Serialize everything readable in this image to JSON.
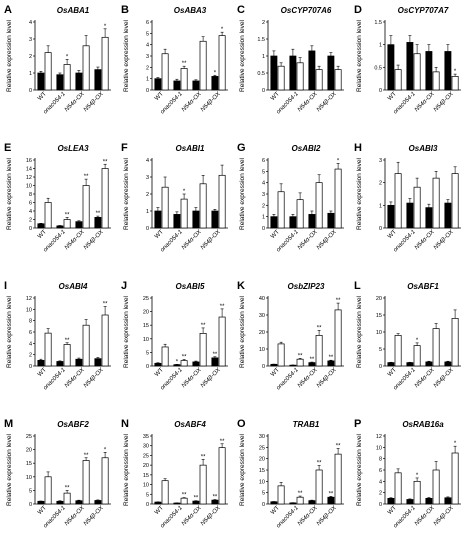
{
  "chart_data": [
    {
      "letter": "A",
      "title": "OsABA1",
      "type": "bar",
      "ylabel": "Relative expression level",
      "ylim": [
        0,
        4
      ],
      "yticks": [
        0,
        1,
        2,
        3,
        4
      ],
      "categories": [
        "WT",
        "onac054-1",
        "N54α-OX",
        "N54β-OX"
      ],
      "series": [
        {
          "fill": "#000000",
          "values": [
            1.0,
            0.9,
            1.0,
            1.2
          ],
          "errors": [
            0.1,
            0.1,
            0.15,
            0.15
          ],
          "stars": [
            "",
            "",
            "",
            ""
          ]
        },
        {
          "fill": "#ffffff",
          "values": [
            2.2,
            1.5,
            2.6,
            3.1
          ],
          "errors": [
            0.4,
            0.3,
            0.6,
            0.5
          ],
          "stars": [
            "",
            "*",
            "",
            "*"
          ]
        }
      ]
    },
    {
      "letter": "B",
      "title": "OsABA3",
      "type": "bar",
      "ylabel": "Relative expression level",
      "ylim": [
        0,
        6
      ],
      "yticks": [
        0,
        1,
        2,
        3,
        4,
        5,
        6
      ],
      "categories": [
        "WT",
        "onac054-1",
        "N54α-OX",
        "N54β-OX"
      ],
      "series": [
        {
          "fill": "#000000",
          "values": [
            1.0,
            0.8,
            0.8,
            1.2
          ],
          "errors": [
            0.1,
            0.15,
            0.1,
            0.1
          ],
          "stars": [
            "",
            "",
            "",
            "*"
          ]
        },
        {
          "fill": "#ffffff",
          "values": [
            3.2,
            1.9,
            4.3,
            4.8
          ],
          "errors": [
            0.4,
            0.2,
            0.4,
            0.3
          ],
          "stars": [
            "",
            "**",
            "",
            "*"
          ]
        }
      ]
    },
    {
      "letter": "C",
      "title": "OsCYP707A6",
      "type": "bar",
      "ylabel": "Relative expression level",
      "ylim": [
        0,
        2
      ],
      "yticks": [
        0,
        0.5,
        1,
        1.5,
        2
      ],
      "categories": [
        "WT",
        "onac054-1",
        "N54α-OX",
        "N54β-OX"
      ],
      "series": [
        {
          "fill": "#000000",
          "values": [
            1.0,
            1.0,
            1.15,
            1.0
          ],
          "errors": [
            0.15,
            0.2,
            0.15,
            0.1
          ],
          "stars": [
            "",
            "",
            "",
            ""
          ]
        },
        {
          "fill": "#ffffff",
          "values": [
            0.7,
            0.8,
            0.6,
            0.6
          ],
          "errors": [
            0.1,
            0.15,
            0.1,
            0.1
          ],
          "stars": [
            "",
            "",
            "",
            ""
          ]
        }
      ]
    },
    {
      "letter": "D",
      "title": "OsCYP707A7",
      "type": "bar",
      "ylabel": "Relative expression level",
      "ylim": [
        0,
        1.5
      ],
      "yticks": [
        0,
        0.5,
        1,
        1.5
      ],
      "categories": [
        "WT",
        "onac054-1",
        "N54α-OX",
        "N54β-OX"
      ],
      "series": [
        {
          "fill": "#000000",
          "values": [
            1.0,
            1.05,
            0.85,
            0.85
          ],
          "errors": [
            0.2,
            0.15,
            0.15,
            0.15
          ],
          "stars": [
            "",
            "",
            "",
            ""
          ]
        },
        {
          "fill": "#ffffff",
          "values": [
            0.45,
            0.8,
            0.4,
            0.3
          ],
          "errors": [
            0.1,
            0.2,
            0.1,
            0.05
          ],
          "stars": [
            "",
            "",
            "",
            "*"
          ]
        }
      ]
    },
    {
      "letter": "E",
      "title": "OsLEA3",
      "type": "bar",
      "ylabel": "Relative expression level",
      "ylim": [
        0,
        16
      ],
      "yticks": [
        0,
        2,
        4,
        6,
        8,
        10,
        12,
        14,
        16
      ],
      "categories": [
        "WT",
        "onac054-1",
        "N54α-OX",
        "N54β-OX"
      ],
      "series": [
        {
          "fill": "#000000",
          "values": [
            1.0,
            0.5,
            1.5,
            2.5
          ],
          "errors": [
            0.1,
            0.1,
            0.2,
            0.3
          ],
          "stars": [
            "",
            "",
            "",
            "**"
          ]
        },
        {
          "fill": "#ffffff",
          "values": [
            6.0,
            2.0,
            10.0,
            14.0
          ],
          "errors": [
            1.0,
            0.5,
            1.5,
            1.0
          ],
          "stars": [
            "",
            "**",
            "**",
            "**"
          ]
        }
      ]
    },
    {
      "letter": "F",
      "title": "OsABI1",
      "type": "bar",
      "ylabel": "Relative expression level",
      "ylim": [
        0,
        4
      ],
      "yticks": [
        0,
        1,
        2,
        3,
        4
      ],
      "categories": [
        "WT",
        "onac054-1",
        "N54α-OX",
        "N54β-OX"
      ],
      "series": [
        {
          "fill": "#000000",
          "values": [
            1.0,
            0.8,
            1.0,
            1.0
          ],
          "errors": [
            0.2,
            0.15,
            0.2,
            0.1
          ],
          "stars": [
            "",
            "",
            "",
            ""
          ]
        },
        {
          "fill": "#ffffff",
          "values": [
            2.4,
            1.7,
            2.6,
            3.1
          ],
          "errors": [
            0.6,
            0.3,
            0.5,
            0.6
          ],
          "stars": [
            "",
            "*",
            "",
            ""
          ]
        }
      ]
    },
    {
      "letter": "G",
      "title": "OsABI2",
      "type": "bar",
      "ylabel": "Relative expression level",
      "ylim": [
        0,
        6
      ],
      "yticks": [
        0,
        1,
        2,
        3,
        4,
        5,
        6
      ],
      "categories": [
        "WT",
        "onac054-1",
        "N54α-OX",
        "N54β-OX"
      ],
      "series": [
        {
          "fill": "#000000",
          "values": [
            1.0,
            1.0,
            1.2,
            1.3
          ],
          "errors": [
            0.2,
            0.2,
            0.3,
            0.2
          ],
          "stars": [
            "",
            "",
            "",
            ""
          ]
        },
        {
          "fill": "#ffffff",
          "values": [
            3.2,
            2.5,
            4.0,
            5.2
          ],
          "errors": [
            0.7,
            0.6,
            0.7,
            0.5
          ],
          "stars": [
            "",
            "",
            "",
            "*"
          ]
        }
      ]
    },
    {
      "letter": "H",
      "title": "OsABI3",
      "type": "bar",
      "ylabel": "Relative expression level",
      "ylim": [
        0,
        3
      ],
      "yticks": [
        0,
        1,
        2,
        3
      ],
      "categories": [
        "WT",
        "onac054-1",
        "N54α-OX",
        "N54β-OX"
      ],
      "series": [
        {
          "fill": "#000000",
          "values": [
            1.0,
            1.1,
            0.9,
            1.1
          ],
          "errors": [
            0.15,
            0.2,
            0.15,
            0.15
          ],
          "stars": [
            "",
            "",
            "",
            ""
          ]
        },
        {
          "fill": "#ffffff",
          "values": [
            2.4,
            1.8,
            2.2,
            2.4
          ],
          "errors": [
            0.5,
            0.4,
            0.3,
            0.3
          ],
          "stars": [
            "",
            "",
            "",
            ""
          ]
        }
      ]
    },
    {
      "letter": "I",
      "title": "OsABI4",
      "type": "bar",
      "ylabel": "Relative expression level",
      "ylim": [
        0,
        12
      ],
      "yticks": [
        0,
        2,
        4,
        6,
        8,
        10,
        12
      ],
      "categories": [
        "WT",
        "onac054-1",
        "N54α-OX",
        "N54β-OX"
      ],
      "series": [
        {
          "fill": "#000000",
          "values": [
            1.0,
            0.8,
            1.2,
            1.3
          ],
          "errors": [
            0.2,
            0.1,
            0.2,
            0.2
          ],
          "stars": [
            "",
            "",
            "",
            ""
          ]
        },
        {
          "fill": "#ffffff",
          "values": [
            5.8,
            3.8,
            7.2,
            9.0
          ],
          "errors": [
            0.8,
            0.3,
            1.0,
            1.5
          ],
          "stars": [
            "",
            "**",
            "",
            "**"
          ]
        }
      ]
    },
    {
      "letter": "J",
      "title": "OsABI5",
      "type": "bar",
      "ylabel": "Relative expression level",
      "ylim": [
        0,
        25
      ],
      "yticks": [
        0,
        5,
        10,
        15,
        20,
        25
      ],
      "categories": [
        "WT",
        "onac054-1",
        "N54α-OX",
        "N54β-OX"
      ],
      "series": [
        {
          "fill": "#000000",
          "values": [
            1.0,
            0.5,
            1.5,
            3.0
          ],
          "errors": [
            0.2,
            0.1,
            0.3,
            0.4
          ],
          "stars": [
            "",
            "*",
            "",
            "**"
          ]
        },
        {
          "fill": "#ffffff",
          "values": [
            7.0,
            2.0,
            12.0,
            18.0
          ],
          "errors": [
            1.0,
            0.4,
            2.0,
            3.0
          ],
          "stars": [
            "",
            "**",
            "**",
            "**"
          ]
        }
      ]
    },
    {
      "letter": "K",
      "title": "OsbZIP23",
      "type": "bar",
      "ylabel": "Relative expression level",
      "ylim": [
        0,
        40
      ],
      "yticks": [
        0,
        10,
        20,
        30,
        40
      ],
      "categories": [
        "WT",
        "onac054-1",
        "N54α-OX",
        "N54β-OX"
      ],
      "series": [
        {
          "fill": "#000000",
          "values": [
            1.0,
            0.5,
            2.0,
            3.0
          ],
          "errors": [
            0.1,
            0.1,
            0.3,
            0.4
          ],
          "stars": [
            "",
            "",
            "**",
            "**"
          ]
        },
        {
          "fill": "#ffffff",
          "values": [
            13.0,
            4.0,
            18.0,
            33.0
          ],
          "errors": [
            1.0,
            0.5,
            3.0,
            4.0
          ],
          "stars": [
            "",
            "**",
            "**",
            "**"
          ]
        }
      ]
    },
    {
      "letter": "L",
      "title": "OsABF1",
      "type": "bar",
      "ylabel": "Relative expression level",
      "ylim": [
        0,
        20
      ],
      "yticks": [
        0,
        5,
        10,
        15,
        20
      ],
      "categories": [
        "WT",
        "onac054-1",
        "N54α-OX",
        "N54β-OX"
      ],
      "series": [
        {
          "fill": "#000000",
          "values": [
            1.0,
            1.0,
            1.2,
            1.2
          ],
          "errors": [
            0.1,
            0.1,
            0.2,
            0.2
          ],
          "stars": [
            "",
            "",
            "",
            ""
          ]
        },
        {
          "fill": "#ffffff",
          "values": [
            9.0,
            6.0,
            11.0,
            14.0
          ],
          "errors": [
            0.5,
            0.8,
            1.5,
            2.5
          ],
          "stars": [
            "",
            "*",
            "",
            ""
          ]
        }
      ]
    },
    {
      "letter": "M",
      "title": "OsABF2",
      "type": "bar",
      "ylabel": "Relative expression level",
      "ylim": [
        0,
        25
      ],
      "yticks": [
        0,
        5,
        10,
        15,
        20,
        25
      ],
      "categories": [
        "WT",
        "onac054-1",
        "N54α-OX",
        "N54β-OX"
      ],
      "series": [
        {
          "fill": "#000000",
          "values": [
            1.0,
            1.0,
            1.2,
            1.3
          ],
          "errors": [
            0.1,
            0.2,
            0.2,
            0.2
          ],
          "stars": [
            "",
            "",
            "",
            ""
          ]
        },
        {
          "fill": "#ffffff",
          "values": [
            10.0,
            4.0,
            16.0,
            17.0
          ],
          "errors": [
            1.8,
            1.0,
            1.0,
            2.0
          ],
          "stars": [
            "",
            "**",
            "**",
            "*"
          ]
        }
      ]
    },
    {
      "letter": "N",
      "title": "OsABF4",
      "type": "bar",
      "ylabel": "Relative expression level",
      "ylim": [
        0,
        35
      ],
      "yticks": [
        0,
        5,
        10,
        15,
        20,
        25,
        30,
        35
      ],
      "categories": [
        "WT",
        "onac054-1",
        "N54α-OX",
        "N54β-OX"
      ],
      "series": [
        {
          "fill": "#000000",
          "values": [
            1.0,
            0.5,
            1.5,
            2.0
          ],
          "errors": [
            0.1,
            0.1,
            0.2,
            0.3
          ],
          "stars": [
            "",
            "",
            "**",
            "**"
          ]
        },
        {
          "fill": "#ffffff",
          "values": [
            12.0,
            3.0,
            20.0,
            29.0
          ],
          "errors": [
            1.0,
            0.3,
            3.0,
            2.0
          ],
          "stars": [
            "",
            "**",
            "**",
            "**"
          ]
        }
      ]
    },
    {
      "letter": "O",
      "title": "TRAB1",
      "type": "bar",
      "ylabel": "Relative expression level",
      "ylim": [
        0,
        30
      ],
      "yticks": [
        0,
        5,
        10,
        15,
        20,
        25,
        30
      ],
      "categories": [
        "WT",
        "onac054-1",
        "N54α-OX",
        "N54β-OX"
      ],
      "series": [
        {
          "fill": "#000000",
          "values": [
            1.0,
            0.5,
            1.5,
            3.0
          ],
          "errors": [
            0.1,
            0.1,
            0.2,
            0.4
          ],
          "stars": [
            "",
            "",
            "",
            "**"
          ]
        },
        {
          "fill": "#ffffff",
          "values": [
            8.0,
            3.0,
            15.0,
            22.0
          ],
          "errors": [
            1.5,
            0.5,
            2.0,
            2.5
          ],
          "stars": [
            "",
            "**",
            "**",
            "**"
          ]
        }
      ]
    },
    {
      "letter": "P",
      "title": "OsRAB16a",
      "type": "bar",
      "ylabel": "Relative expression level",
      "ylim": [
        0,
        12
      ],
      "yticks": [
        0,
        2,
        4,
        6,
        8,
        10,
        12
      ],
      "categories": [
        "WT",
        "onac054-1",
        "N54α-OX",
        "N54β-OX"
      ],
      "series": [
        {
          "fill": "#000000",
          "values": [
            1.0,
            0.8,
            1.0,
            1.1
          ],
          "errors": [
            0.1,
            0.1,
            0.15,
            0.15
          ],
          "stars": [
            "",
            "",
            "",
            ""
          ]
        },
        {
          "fill": "#ffffff",
          "values": [
            5.5,
            4.0,
            6.0,
            9.0
          ],
          "errors": [
            0.7,
            0.6,
            1.5,
            1.2
          ],
          "stars": [
            "",
            "*",
            "",
            "*"
          ]
        }
      ]
    }
  ]
}
